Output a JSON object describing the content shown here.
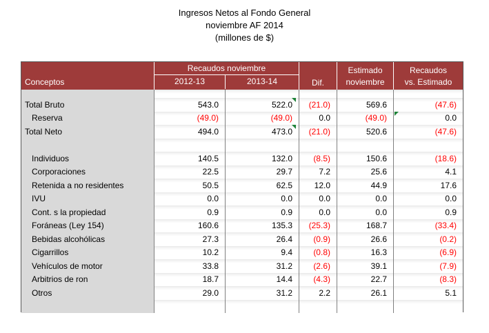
{
  "title": {
    "lines": [
      "Ingresos Netos al Fondo General",
      "noviembre AF 2014",
      "(millones de $)"
    ]
  },
  "table": {
    "header": {
      "conceptos": "Conceptos",
      "group_recaudos": "Recaudos noviembre",
      "sub_2012_13": "2012-13",
      "sub_2013_14": "2013-14",
      "dif": "Dif.",
      "estimado": [
        "Estimado",
        "noviembre"
      ],
      "recaudos_vs_estimado": [
        "Recaudos",
        "vs. Estimado"
      ]
    },
    "columns": [
      "Conceptos",
      "Recaudos noviembre 2012-13",
      "Recaudos noviembre 2013-14",
      "Dif.",
      "Estimado noviembre",
      "Recaudos vs. Estimado"
    ],
    "rows": [
      {
        "type": "spacer-thin"
      },
      {
        "type": "data",
        "label": "Total Bruto",
        "indent": false,
        "values": [
          "543.0",
          "522.0",
          "(21.0)",
          "569.6",
          "(47.6)"
        ],
        "markers": [
          {
            "col": 1,
            "pos": "top-right"
          }
        ]
      },
      {
        "type": "data",
        "label": "Reserva",
        "indent": true,
        "values": [
          "(49.0)",
          "(49.0)",
          "0.0",
          "(49.0)",
          "0.0"
        ],
        "markers": [
          {
            "col": 4,
            "pos": "top-left"
          }
        ]
      },
      {
        "type": "data",
        "label": "Total Neto",
        "indent": false,
        "values": [
          "494.0",
          "473.0",
          "(21.0)",
          "520.6",
          "(47.6)"
        ],
        "markers": [
          {
            "col": 1,
            "pos": "top-right"
          }
        ]
      },
      {
        "type": "spacer"
      },
      {
        "type": "data",
        "label": "Individuos",
        "indent": true,
        "values": [
          "140.5",
          "132.0",
          "(8.5)",
          "150.6",
          "(18.6)"
        ]
      },
      {
        "type": "data",
        "label": "Corporaciones",
        "indent": true,
        "values": [
          "22.5",
          "29.7",
          "7.2",
          "25.6",
          "4.1"
        ]
      },
      {
        "type": "data",
        "label": "Retenida a no residentes",
        "indent": true,
        "values": [
          "50.5",
          "62.5",
          "12.0",
          "44.9",
          "17.6"
        ]
      },
      {
        "type": "data",
        "label": "IVU",
        "indent": true,
        "values": [
          "0.0",
          "0.0",
          "0.0",
          "0.0",
          "0.0"
        ]
      },
      {
        "type": "data",
        "label": "Cont. s la propiedad",
        "indent": true,
        "values": [
          "0.9",
          "0.9",
          "0.0",
          "0.0",
          "0.9"
        ]
      },
      {
        "type": "data",
        "label": "Foráneas (Ley 154)",
        "indent": true,
        "values": [
          "160.6",
          "135.3",
          "(25.3)",
          "168.7",
          "(33.4)"
        ]
      },
      {
        "type": "data",
        "label": "Bebidas alcohólicas",
        "indent": true,
        "values": [
          "27.3",
          "26.4",
          "(0.9)",
          "26.6",
          "(0.2)"
        ]
      },
      {
        "type": "data",
        "label": "Cigarrillos",
        "indent": true,
        "values": [
          "10.2",
          "9.4",
          "(0.8)",
          "16.3",
          "(6.9)"
        ]
      },
      {
        "type": "data",
        "label": "Vehículos de motor",
        "indent": true,
        "values": [
          "33.8",
          "31.2",
          "(2.6)",
          "39.1",
          "(7.9)"
        ]
      },
      {
        "type": "data",
        "label": "Arbitrios de ron",
        "indent": true,
        "values": [
          "18.7",
          "14.4",
          "(4.3)",
          "22.7",
          "(8.3)"
        ]
      },
      {
        "type": "data",
        "label": "Otros",
        "indent": true,
        "values": [
          "29.0",
          "31.2",
          "2.2",
          "26.1",
          "5.1"
        ]
      },
      {
        "type": "spacer"
      }
    ]
  },
  "icons": {
    "comment_marker": "green-corner-triangle"
  },
  "colors": {
    "header_bg": "#9E3B3A",
    "label_col_bg": "#D9D9D9",
    "negative": "#FF0000",
    "positive": "#000000",
    "marker_green": "#1E8238",
    "grid_border": "#7F7F7F",
    "outer_border": "#595959"
  }
}
